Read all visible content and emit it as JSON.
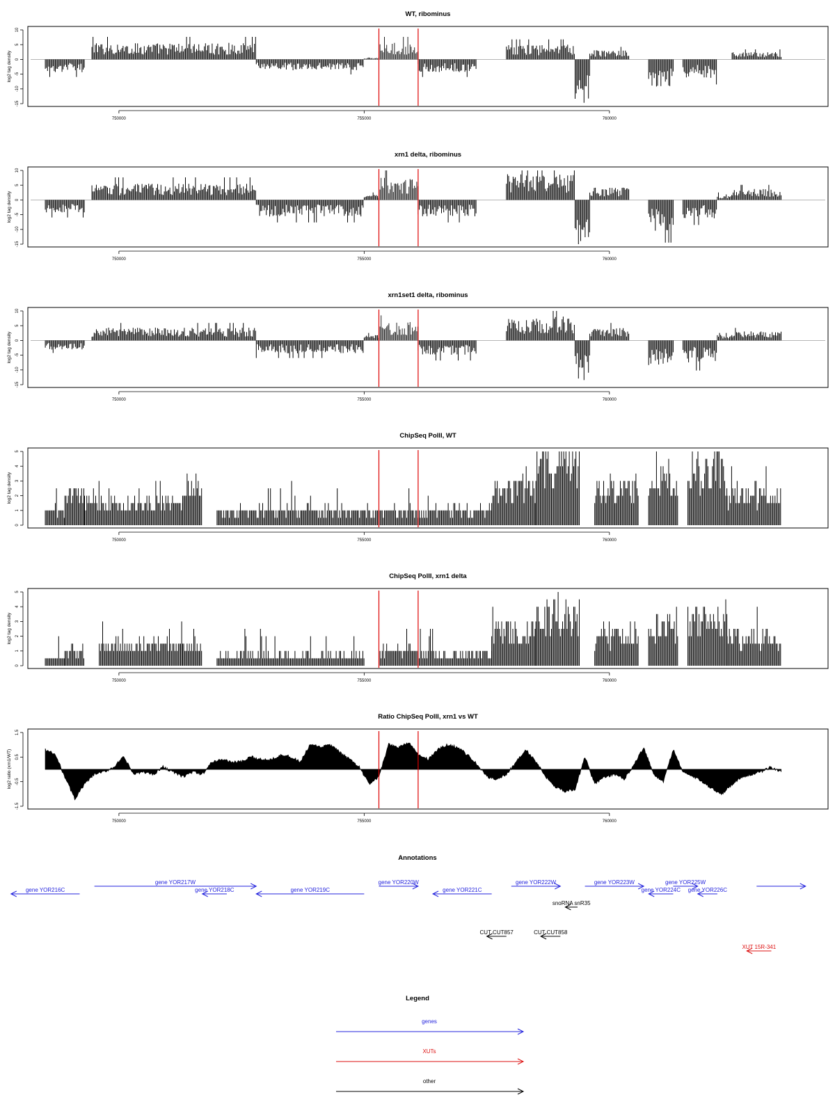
{
  "figure_colors": {
    "genes": "#2222dd",
    "XUTs": "#dd1111",
    "other": "#000000",
    "bars": "#000000",
    "marker_lines": "#dd0000",
    "baseline": "#888888"
  },
  "chart_data": [
    {
      "type": "bar",
      "title": "WT, ribominus",
      "ylabel": "log2 tag density",
      "ylim": [
        -15,
        10
      ],
      "yticks": [
        -15,
        -10,
        -5,
        0,
        5,
        10
      ],
      "xlim": [
        748200,
        764400
      ],
      "xticks": [
        750000,
        755000,
        760000
      ],
      "xtick_labels": [
        "750000",
        "755000",
        "760000"
      ],
      "marker_positions": [
        755300,
        756100
      ],
      "segments": [
        {
          "start": 748500,
          "end": 749300,
          "level": -3.5
        },
        {
          "start": 749300,
          "end": 749450,
          "level": 0
        },
        {
          "start": 749450,
          "end": 752800,
          "level": 4.5
        },
        {
          "start": 752800,
          "end": 755000,
          "level": -3
        },
        {
          "start": 755000,
          "end": 755300,
          "level": 0.5
        },
        {
          "start": 755300,
          "end": 756100,
          "level": 4.5,
          "highlight": true
        },
        {
          "start": 756100,
          "end": 757300,
          "level": -3.5
        },
        {
          "start": 757300,
          "end": 757900,
          "level": 0
        },
        {
          "start": 757900,
          "end": 759300,
          "level": 4
        },
        {
          "start": 759300,
          "end": 759600,
          "level": -12
        },
        {
          "start": 759600,
          "end": 760400,
          "level": 2.5
        },
        {
          "start": 760400,
          "end": 760800,
          "level": 0
        },
        {
          "start": 760800,
          "end": 761300,
          "level": -7.5
        },
        {
          "start": 761300,
          "end": 761500,
          "level": 0
        },
        {
          "start": 761500,
          "end": 762200,
          "level": -5
        },
        {
          "start": 762200,
          "end": 762500,
          "level": 0
        },
        {
          "start": 762500,
          "end": 763500,
          "level": 2
        }
      ]
    },
    {
      "type": "bar",
      "title": "xrn1 delta, ribominus",
      "ylabel": "log2 tag density",
      "ylim": [
        -15,
        10
      ],
      "yticks": [
        -15,
        -10,
        -5,
        0,
        5,
        10
      ],
      "xlim": [
        748200,
        764400
      ],
      "xticks": [
        750000,
        755000,
        760000
      ],
      "xtick_labels": [
        "750000",
        "755000",
        "760000"
      ],
      "marker_positions": [
        755300,
        756100
      ],
      "segments": [
        {
          "start": 748500,
          "end": 749300,
          "level": -3.5
        },
        {
          "start": 749300,
          "end": 749450,
          "level": 0
        },
        {
          "start": 749450,
          "end": 752800,
          "level": 4.5
        },
        {
          "start": 752800,
          "end": 755000,
          "level": -4.5
        },
        {
          "start": 755000,
          "end": 755300,
          "level": 1.5
        },
        {
          "start": 755300,
          "end": 756100,
          "level": 6,
          "highlight": true
        },
        {
          "start": 756100,
          "end": 757300,
          "level": -4.5
        },
        {
          "start": 757300,
          "end": 757900,
          "level": 0
        },
        {
          "start": 757900,
          "end": 759300,
          "level": 7
        },
        {
          "start": 759300,
          "end": 759600,
          "level": -12
        },
        {
          "start": 759600,
          "end": 760400,
          "level": 3.5
        },
        {
          "start": 760400,
          "end": 760800,
          "level": 0
        },
        {
          "start": 760800,
          "end": 761300,
          "level": -8.5
        },
        {
          "start": 761300,
          "end": 761500,
          "level": 0
        },
        {
          "start": 761500,
          "end": 762200,
          "level": -5
        },
        {
          "start": 762200,
          "end": 762500,
          "level": 1.5
        },
        {
          "start": 762500,
          "end": 763500,
          "level": 3
        }
      ]
    },
    {
      "type": "bar",
      "title": "xrn1set1 delta, ribominus",
      "ylabel": "log2 tag density",
      "ylim": [
        -15,
        10
      ],
      "yticks": [
        -15,
        -10,
        -5,
        0,
        5,
        10
      ],
      "xlim": [
        748200,
        764400
      ],
      "xticks": [
        750000,
        755000,
        760000
      ],
      "xtick_labels": [
        "750000",
        "755000",
        "760000"
      ],
      "marker_positions": [
        755300,
        756100
      ],
      "segments": [
        {
          "start": 748500,
          "end": 749300,
          "level": -2.5
        },
        {
          "start": 749300,
          "end": 749450,
          "level": 0
        },
        {
          "start": 749450,
          "end": 752800,
          "level": 3.5
        },
        {
          "start": 752800,
          "end": 755000,
          "level": -3.5
        },
        {
          "start": 755000,
          "end": 755300,
          "level": 1.5
        },
        {
          "start": 755300,
          "end": 756100,
          "level": 5,
          "highlight": true
        },
        {
          "start": 756100,
          "end": 757300,
          "level": -4
        },
        {
          "start": 757300,
          "end": 757900,
          "level": 0
        },
        {
          "start": 757900,
          "end": 759300,
          "level": 6.5
        },
        {
          "start": 759300,
          "end": 759600,
          "level": -11
        },
        {
          "start": 759600,
          "end": 760400,
          "level": 3.5
        },
        {
          "start": 760400,
          "end": 760800,
          "level": 0
        },
        {
          "start": 760800,
          "end": 761300,
          "level": -7.5
        },
        {
          "start": 761300,
          "end": 761500,
          "level": 0
        },
        {
          "start": 761500,
          "end": 762200,
          "level": -6
        },
        {
          "start": 762200,
          "end": 762500,
          "level": 1.5
        },
        {
          "start": 762500,
          "end": 763500,
          "level": 2.5
        }
      ]
    },
    {
      "type": "bar",
      "title": "ChipSeq PolII, WT",
      "ylabel": "log2 tag density",
      "ylim": [
        0,
        5
      ],
      "yticks": [
        0,
        1,
        2,
        3,
        4,
        5
      ],
      "xlim": [
        748200,
        764400
      ],
      "xticks": [
        750000,
        755000,
        760000
      ],
      "xtick_labels": [
        "750000",
        "755000",
        "760000"
      ],
      "marker_positions": [
        755300,
        756100
      ],
      "segments": [
        {
          "start": 748500,
          "end": 748900,
          "level": 1
        },
        {
          "start": 748900,
          "end": 749300,
          "level": 2.2
        },
        {
          "start": 749300,
          "end": 751300,
          "level": 1.5
        },
        {
          "start": 751300,
          "end": 751700,
          "level": 2.7
        },
        {
          "start": 751700,
          "end": 752000,
          "level": 0
        },
        {
          "start": 752000,
          "end": 755000,
          "level": 1
        },
        {
          "start": 755000,
          "end": 755300,
          "level": 1
        },
        {
          "start": 755300,
          "end": 756100,
          "level": 1
        },
        {
          "start": 756100,
          "end": 757600,
          "level": 1
        },
        {
          "start": 757600,
          "end": 758500,
          "level": 2.5
        },
        {
          "start": 758500,
          "end": 759400,
          "level": 4.4
        },
        {
          "start": 759400,
          "end": 759700,
          "level": 0
        },
        {
          "start": 759700,
          "end": 760600,
          "level": 2.5
        },
        {
          "start": 760600,
          "end": 760800,
          "level": 0
        },
        {
          "start": 760800,
          "end": 761400,
          "level": 3.2
        },
        {
          "start": 761400,
          "end": 761600,
          "level": 0
        },
        {
          "start": 761600,
          "end": 762400,
          "level": 3.8
        },
        {
          "start": 762400,
          "end": 763500,
          "level": 2.2
        }
      ]
    },
    {
      "type": "bar",
      "title": "ChipSeq PolII, xrn1 delta",
      "ylabel": "log2 tag density",
      "ylim": [
        0,
        5
      ],
      "yticks": [
        0,
        1,
        2,
        3,
        4,
        5
      ],
      "xlim": [
        748200,
        764400
      ],
      "xticks": [
        750000,
        755000,
        760000
      ],
      "xtick_labels": [
        "750000",
        "755000",
        "760000"
      ],
      "marker_positions": [
        755300,
        756100
      ],
      "segments": [
        {
          "start": 748500,
          "end": 748900,
          "level": 0.3
        },
        {
          "start": 748900,
          "end": 749300,
          "level": 1.3
        },
        {
          "start": 749300,
          "end": 749600,
          "level": 0
        },
        {
          "start": 749600,
          "end": 751300,
          "level": 1.4
        },
        {
          "start": 751300,
          "end": 751700,
          "level": 1.8
        },
        {
          "start": 751700,
          "end": 752000,
          "level": 0
        },
        {
          "start": 752000,
          "end": 755000,
          "level": 0.7
        },
        {
          "start": 755000,
          "end": 755300,
          "level": 0
        },
        {
          "start": 755300,
          "end": 756100,
          "level": 1.1
        },
        {
          "start": 756100,
          "end": 757600,
          "level": 0.8
        },
        {
          "start": 757600,
          "end": 758500,
          "level": 2.5
        },
        {
          "start": 758500,
          "end": 759400,
          "level": 3.5
        },
        {
          "start": 759400,
          "end": 759700,
          "level": 0
        },
        {
          "start": 759700,
          "end": 760600,
          "level": 2.2
        },
        {
          "start": 760600,
          "end": 760800,
          "level": 0
        },
        {
          "start": 760800,
          "end": 761400,
          "level": 2.7
        },
        {
          "start": 761400,
          "end": 761600,
          "level": 0
        },
        {
          "start": 761600,
          "end": 762400,
          "level": 3.2
        },
        {
          "start": 762400,
          "end": 763500,
          "level": 2.0
        }
      ]
    },
    {
      "type": "area",
      "title": "Ratio ChipSeq PolII, xrn1 vs WT",
      "ylabel": "log2 ratio (xrn1/WT)",
      "ylim": [
        -1.5,
        1.5
      ],
      "yticks": [
        -1.5,
        -0.5,
        0.5,
        1.5
      ],
      "xlim": [
        748200,
        764400
      ],
      "xticks": [
        750000,
        755000,
        760000
      ],
      "xtick_labels": [
        "750000",
        "755000",
        "760000"
      ],
      "marker_positions": [
        755300,
        756100
      ],
      "x": [
        748500,
        748700,
        748900,
        749100,
        749300,
        749500,
        749700,
        749900,
        750100,
        750300,
        750500,
        750700,
        750900,
        751100,
        751300,
        751500,
        751700,
        751900,
        752100,
        752300,
        752500,
        752700,
        752900,
        753100,
        753300,
        753500,
        753700,
        753900,
        754100,
        754300,
        754500,
        754700,
        754900,
        755100,
        755300,
        755500,
        755700,
        755900,
        756100,
        756300,
        756500,
        756700,
        756900,
        757100,
        757300,
        757500,
        757700,
        757900,
        758100,
        758300,
        758500,
        758700,
        758900,
        759100,
        759300,
        759500,
        759700,
        759900,
        760100,
        760300,
        760500,
        760700,
        760900,
        761100,
        761300,
        761500,
        761700,
        761900,
        762100,
        762300,
        762500,
        762700,
        762900,
        763100,
        763300,
        763500
      ],
      "y": [
        0.8,
        0.6,
        -0.3,
        -1.2,
        -0.6,
        -0.2,
        -0.1,
        0.1,
        0.5,
        -0.2,
        -0.1,
        -0.2,
        0.1,
        -0.1,
        -0.3,
        -0.1,
        -0.2,
        0.3,
        0.4,
        0.3,
        0.3,
        0.5,
        0.4,
        0.4,
        0.6,
        0.5,
        0.3,
        1.0,
        0.9,
        1.0,
        0.7,
        0.4,
        0.1,
        -0.6,
        -0.3,
        1.0,
        0.9,
        1.1,
        0.6,
        0.4,
        0.8,
        1.0,
        0.9,
        0.6,
        0.2,
        -0.3,
        -0.4,
        -0.2,
        0.3,
        0.8,
        0.3,
        -0.3,
        -0.7,
        -0.9,
        -0.8,
        0.5,
        -0.6,
        -0.3,
        -0.2,
        -0.4,
        0.2,
        0.9,
        -0.2,
        -0.5,
        0.8,
        -0.1,
        -0.3,
        -0.5,
        -0.8,
        -1.0,
        -0.6,
        -0.3,
        -0.2,
        -0.1,
        0.1,
        -0.1
      ]
    }
  ],
  "annotations": {
    "title": "Annotations",
    "features": [
      {
        "label": "gene YOR216C",
        "kind": "genes",
        "start": 747800,
        "end": 749200,
        "strand": "-",
        "row": 1
      },
      {
        "label": "gene YOR217W",
        "kind": "genes",
        "start": 749500,
        "end": 752800,
        "strand": "+",
        "row": 0
      },
      {
        "label": "gene YOR218C",
        "kind": "genes",
        "start": 751700,
        "end": 752200,
        "strand": "-",
        "row": 1
      },
      {
        "label": "gene YOR219C",
        "kind": "genes",
        "start": 752800,
        "end": 755000,
        "strand": "-",
        "row": 1
      },
      {
        "label": "gene YOR220W",
        "kind": "genes",
        "start": 755300,
        "end": 756100,
        "strand": "+",
        "row": 0
      },
      {
        "label": "gene YOR221C",
        "kind": "genes",
        "start": 756400,
        "end": 757600,
        "strand": "-",
        "row": 1
      },
      {
        "label": "gene YOR222W",
        "kind": "genes",
        "start": 758000,
        "end": 759000,
        "strand": "+",
        "row": 0
      },
      {
        "label": "gene YOR223W",
        "kind": "genes",
        "start": 759500,
        "end": 760700,
        "strand": "+",
        "row": 0
      },
      {
        "label": "gene YOR224C",
        "kind": "genes",
        "start": 760800,
        "end": 761300,
        "strand": "-",
        "row": 1
      },
      {
        "label": "gene YOR225W",
        "kind": "genes",
        "start": 761300,
        "end": 761800,
        "strand": "+",
        "row": 0
      },
      {
        "label": "gene YOR226C",
        "kind": "genes",
        "start": 761800,
        "end": 762200,
        "strand": "-",
        "row": 1
      },
      {
        "label": "",
        "kind": "genes",
        "start": 763000,
        "end": 764000,
        "strand": "+",
        "row": 0
      },
      {
        "label": "snoRNA snR35",
        "kind": "other",
        "start": 759100,
        "end": 759350,
        "strand": "-",
        "row": 2
      },
      {
        "label": "CUT CUT857",
        "kind": "other",
        "start": 757500,
        "end": 757900,
        "strand": "-",
        "row": 3
      },
      {
        "label": "CUT CUT858",
        "kind": "other",
        "start": 758600,
        "end": 759000,
        "strand": "-",
        "row": 3
      },
      {
        "label": "XUT 15R-341",
        "kind": "XUTs",
        "start": 762800,
        "end": 763300,
        "strand": "-",
        "row": 4
      }
    ]
  },
  "legend": {
    "title": "Legend",
    "entries": [
      {
        "label": "genes",
        "kind": "genes"
      },
      {
        "label": "XUTs",
        "kind": "XUTs"
      },
      {
        "label": "other",
        "kind": "other"
      }
    ]
  }
}
